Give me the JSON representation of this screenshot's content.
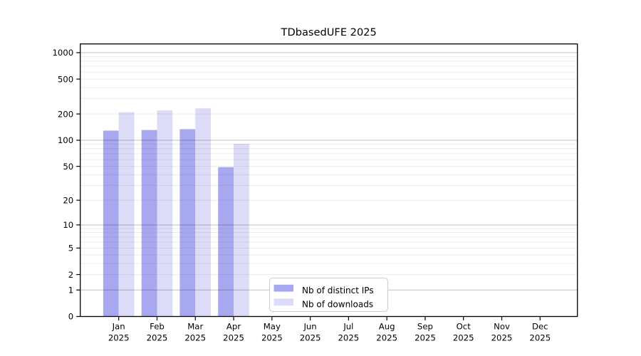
{
  "chart_data": {
    "type": "bar",
    "title": "TDbasedUFE 2025",
    "y_scale": "log1p",
    "y_ticks": [
      0,
      1,
      2,
      5,
      10,
      20,
      50,
      100,
      200,
      500,
      1000
    ],
    "x_categories": [
      "Jan",
      "Feb",
      "Mar",
      "Apr",
      "May",
      "Jun",
      "Jul",
      "Aug",
      "Sep",
      "Oct",
      "Nov",
      "Dec"
    ],
    "x_year": "2025",
    "series": [
      {
        "name": "Nb of distinct IPs",
        "color": "#a8a8f0",
        "values": [
          129,
          131,
          134,
          49,
          0,
          0,
          0,
          0,
          0,
          0,
          0,
          0
        ]
      },
      {
        "name": "Nb of downloads",
        "color": "#dcdcf8",
        "values": [
          210,
          220,
          232,
          91,
          0,
          0,
          0,
          0,
          0,
          0,
          0,
          0
        ]
      }
    ],
    "legend_position": "bottom-center",
    "grid": {
      "major_color": "#c8c8c8",
      "minor_color": "#ececec"
    },
    "axis_color": "#000000",
    "background": "#ffffff"
  }
}
